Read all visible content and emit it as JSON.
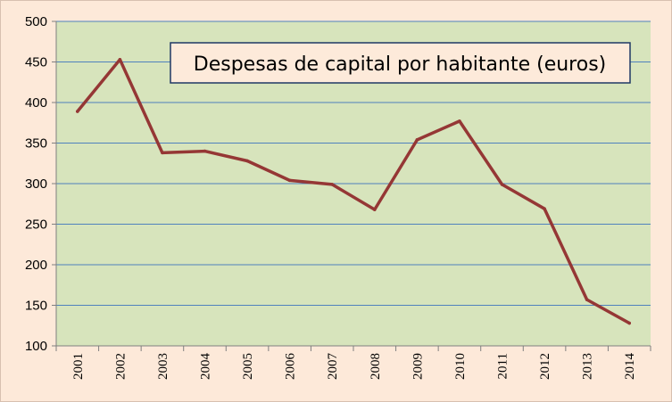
{
  "chart_data": {
    "type": "line",
    "title": "Despesas de capital por habitante (euros)",
    "xlabel": "",
    "ylabel": "",
    "x": [
      "2001",
      "2002",
      "2003",
      "2004",
      "2005",
      "2006",
      "2007",
      "2008",
      "2009",
      "2010",
      "2011",
      "2012",
      "2013",
      "2014"
    ],
    "series": [
      {
        "values": [
          389,
          453,
          338,
          340,
          328,
          304,
          299,
          268,
          354,
          377,
          299,
          269,
          157,
          128
        ],
        "color": "#953735"
      }
    ],
    "ylim": [
      100,
      500
    ],
    "yticks": [
      100,
      150,
      200,
      250,
      300,
      350,
      400,
      450,
      500
    ],
    "grid": true,
    "legend": "none",
    "colors": {
      "plot_background": "#d7e4bc",
      "page_background": "#fde9d9",
      "gridline": "#4f81bd",
      "title_box_background": "#fdeada",
      "title_box_border": "#1f3864"
    }
  }
}
